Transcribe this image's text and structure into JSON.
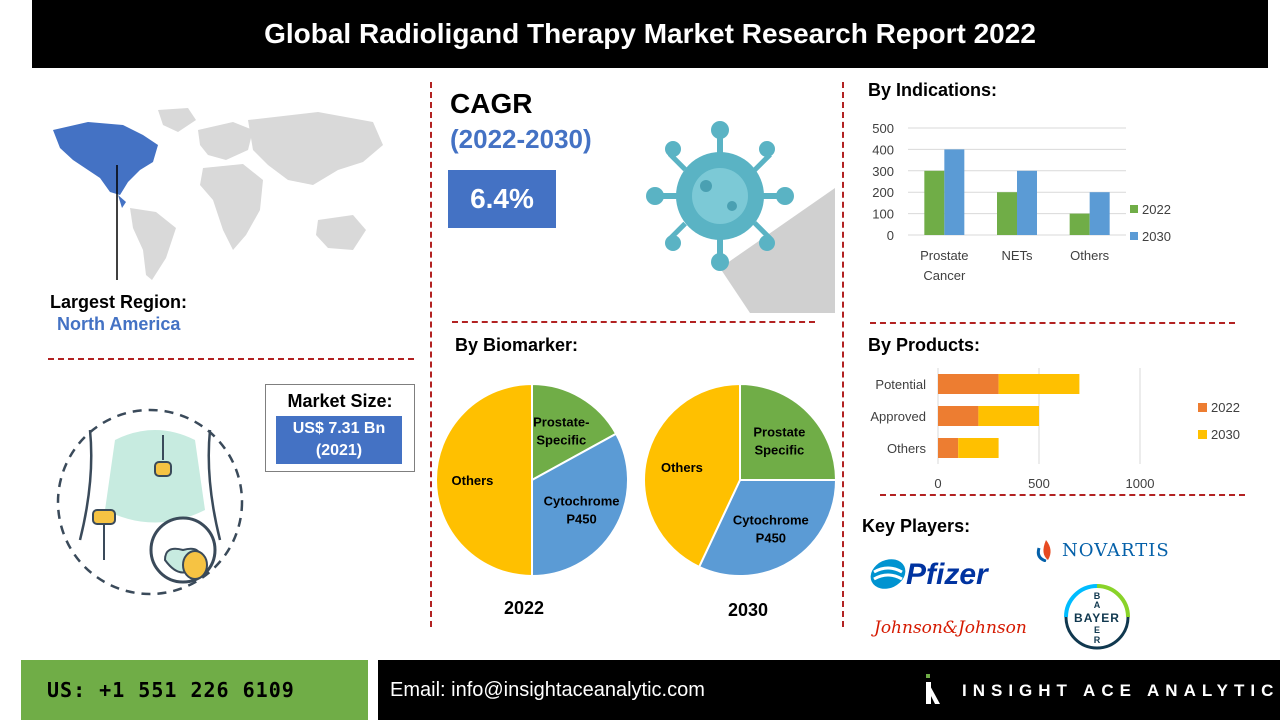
{
  "title": "Global Radioligand Therapy Market Research Report 2022",
  "region": {
    "label": "Largest Region:",
    "value": "North America"
  },
  "cagr": {
    "label": "CAGR",
    "period": "(2022-2030)",
    "value": "6.4%"
  },
  "market_size": {
    "label": "Market Size:",
    "value_line1": "US$ 7.31 Bn",
    "value_line2": "(2021)"
  },
  "sections": {
    "indications": "By Indications:",
    "biomarker": "By Biomarker:",
    "products": "By Products:",
    "key_players": "Key Players:"
  },
  "key_players": [
    "Pfizer",
    "NOVARTIS",
    "Johnson&Johnson",
    "BAYER"
  ],
  "footer": {
    "phone": "US: +1 551 226 6109",
    "email": "Email: info@insightaceanalytic.com",
    "brand": "INSIGHT ACE ANALYTIC"
  },
  "colors": {
    "blue": "#4472c4",
    "green": "#70ad47",
    "orange": "#ed7d31",
    "yellow": "#ffc000",
    "light_blue": "#5b9bd5",
    "red_dash": "#b22222"
  },
  "chart_data": [
    {
      "type": "bar",
      "title": "By Indications:",
      "categories": [
        "Prostate Cancer",
        "NETs",
        "Others"
      ],
      "series": [
        {
          "name": "2022",
          "color": "#70ad47",
          "values": [
            300,
            200,
            100
          ]
        },
        {
          "name": "2030",
          "color": "#5b9bd5",
          "values": [
            400,
            300,
            200
          ]
        }
      ],
      "ylim": [
        0,
        500
      ],
      "yticks": [
        0,
        100,
        200,
        300,
        400,
        500
      ],
      "legend": "right"
    },
    {
      "type": "bar",
      "orientation": "horizontal-stacked",
      "title": "By Products:",
      "categories": [
        "Potential",
        "Approved",
        "Others"
      ],
      "series": [
        {
          "name": "2022",
          "color": "#ed7d31",
          "values": [
            300,
            200,
            100
          ]
        },
        {
          "name": "2030",
          "color": "#ffc000",
          "values": [
            400,
            300,
            200
          ]
        }
      ],
      "xlim": [
        0,
        1000
      ],
      "xticks": [
        0,
        500,
        1000
      ],
      "legend": "right"
    },
    {
      "type": "pie",
      "title": "By Biomarker:",
      "caption": "2022",
      "slices": [
        {
          "label": "Prostate-Specific",
          "value": 17,
          "color": "#70ad47"
        },
        {
          "label": "Cytochrome P450",
          "value": 33,
          "color": "#5b9bd5"
        },
        {
          "label": "Others",
          "value": 50,
          "color": "#ffc000"
        }
      ]
    },
    {
      "type": "pie",
      "title": "By Biomarker:",
      "caption": "2030",
      "slices": [
        {
          "label": "Prostate Specific",
          "value": 25,
          "color": "#70ad47"
        },
        {
          "label": "Cytochrome P450",
          "value": 32,
          "color": "#5b9bd5"
        },
        {
          "label": "Others",
          "value": 43,
          "color": "#ffc000"
        }
      ]
    }
  ]
}
